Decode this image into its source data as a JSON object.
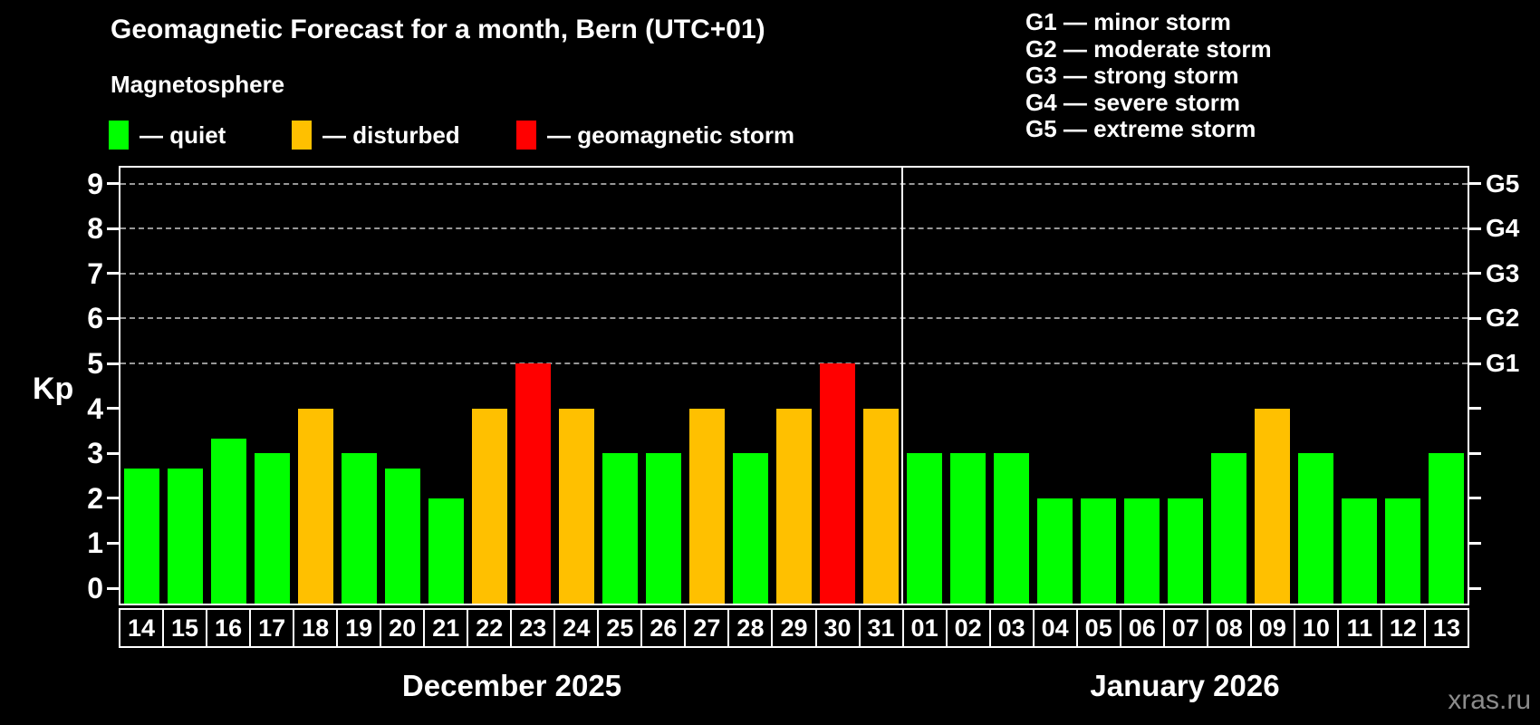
{
  "title": "Geomagnetic Forecast for a month, Bern (UTC+01)",
  "subtitle": "Magnetosphere",
  "legend": {
    "items": [
      {
        "key": "quiet",
        "label": "— quiet",
        "color": "#00ff00"
      },
      {
        "key": "disturbed",
        "label": "— disturbed",
        "color": "#ffc000"
      },
      {
        "key": "storm",
        "label": "— geomagnetic storm",
        "color": "#ff0000"
      }
    ]
  },
  "g_legend": [
    "G1 — minor storm",
    "G2 — moderate storm",
    "G3 — strong storm",
    "G4 — severe storm",
    "G5 — extreme storm"
  ],
  "watermark": "xras.ru",
  "colors": {
    "quiet": "#00ff00",
    "disturbed": "#ffc000",
    "storm": "#ff0000",
    "axis": "#ffffff",
    "grid": "#b3b3b3",
    "background": "#000000",
    "watermark": "#8c8c8c"
  },
  "chart_data": {
    "type": "bar",
    "ylabel": "Kp",
    "ylim": [
      0,
      9
    ],
    "y_ticks": [
      0,
      1,
      2,
      3,
      4,
      5,
      6,
      7,
      8,
      9
    ],
    "gridlines_at": [
      5,
      6,
      7,
      8,
      9
    ],
    "grid": "dashed-horizontal-on-storm-levels-only",
    "legend_position": "top-left",
    "right_axis_labels": [
      {
        "kp": 5,
        "label": "G1"
      },
      {
        "kp": 6,
        "label": "G2"
      },
      {
        "kp": 7,
        "label": "G3"
      },
      {
        "kp": 8,
        "label": "G4"
      },
      {
        "kp": 9,
        "label": "G5"
      }
    ],
    "months": [
      {
        "label": "December 2025",
        "days": [
          {
            "date": "14",
            "kp": 2.67,
            "status": "quiet"
          },
          {
            "date": "15",
            "kp": 2.67,
            "status": "quiet"
          },
          {
            "date": "16",
            "kp": 3.33,
            "status": "quiet"
          },
          {
            "date": "17",
            "kp": 3,
            "status": "quiet"
          },
          {
            "date": "18",
            "kp": 4,
            "status": "disturbed"
          },
          {
            "date": "19",
            "kp": 3,
            "status": "quiet"
          },
          {
            "date": "20",
            "kp": 2.67,
            "status": "quiet"
          },
          {
            "date": "21",
            "kp": 2,
            "status": "quiet"
          },
          {
            "date": "22",
            "kp": 4,
            "status": "disturbed"
          },
          {
            "date": "23",
            "kp": 5,
            "status": "storm"
          },
          {
            "date": "24",
            "kp": 4,
            "status": "disturbed"
          },
          {
            "date": "25",
            "kp": 3,
            "status": "quiet"
          },
          {
            "date": "26",
            "kp": 3,
            "status": "quiet"
          },
          {
            "date": "27",
            "kp": 4,
            "status": "disturbed"
          },
          {
            "date": "28",
            "kp": 3,
            "status": "quiet"
          },
          {
            "date": "29",
            "kp": 4,
            "status": "disturbed"
          },
          {
            "date": "30",
            "kp": 5,
            "status": "storm"
          },
          {
            "date": "31",
            "kp": 4,
            "status": "disturbed"
          }
        ]
      },
      {
        "label": "January 2026",
        "days": [
          {
            "date": "01",
            "kp": 3,
            "status": "quiet"
          },
          {
            "date": "02",
            "kp": 3,
            "status": "quiet"
          },
          {
            "date": "03",
            "kp": 3,
            "status": "quiet"
          },
          {
            "date": "04",
            "kp": 2,
            "status": "quiet"
          },
          {
            "date": "05",
            "kp": 2,
            "status": "quiet"
          },
          {
            "date": "06",
            "kp": 2,
            "status": "quiet"
          },
          {
            "date": "07",
            "kp": 2,
            "status": "quiet"
          },
          {
            "date": "08",
            "kp": 3,
            "status": "quiet"
          },
          {
            "date": "09",
            "kp": 4,
            "status": "disturbed"
          },
          {
            "date": "10",
            "kp": 3,
            "status": "quiet"
          },
          {
            "date": "11",
            "kp": 2,
            "status": "quiet"
          },
          {
            "date": "12",
            "kp": 2,
            "status": "quiet"
          },
          {
            "date": "13",
            "kp": 3,
            "status": "quiet"
          }
        ]
      }
    ]
  }
}
